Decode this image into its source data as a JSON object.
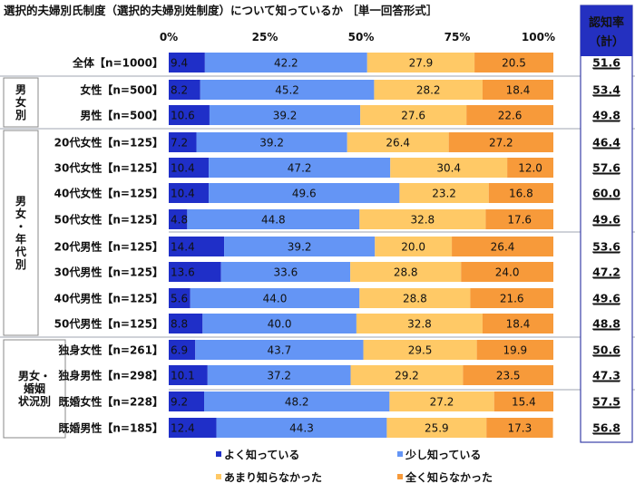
{
  "chart_data": {
    "type": "bar",
    "orientation": "horizontal",
    "stacked": true,
    "title": "選択的夫婦別氏制度（選択的夫婦別姓制度）について知っているか ［単一回答形式］",
    "xlim": [
      0,
      100
    ],
    "x_ticks": [
      "0%",
      "25%",
      "50%",
      "75%",
      "100%"
    ],
    "legend_position": "bottom",
    "series": [
      {
        "name": "よく知っている",
        "color": "#1f2fc8"
      },
      {
        "name": "少し知っている",
        "color": "#6495f5"
      },
      {
        "name": "あまり知らなかった",
        "color": "#ffc966"
      },
      {
        "name": "全く知らなかった",
        "color": "#f79a3a"
      }
    ],
    "side_column_header": "認知率（計）",
    "side_column_header_line1": "認知率",
    "side_column_header_line2": "（計）",
    "groups": [
      {
        "label": "",
        "rows": [
          0
        ]
      },
      {
        "label": "男女別",
        "rows": [
          1,
          2
        ]
      },
      {
        "label": "男女・年代別",
        "rows": [
          3,
          4,
          5,
          6,
          7,
          8,
          9,
          10
        ]
      },
      {
        "label": "男女・婚姻状況別",
        "rows": [
          11,
          12,
          13,
          14
        ]
      }
    ],
    "group_labels_display": [
      "",
      "男\n女\n別",
      "男\n女\n・\n年\n代\n別",
      "男女・\n婚姻\n状況別"
    ],
    "categories": [
      "全体【n=1000】",
      "女性【n=500】",
      "男性【n=500】",
      "20代女性【n=125】",
      "30代女性【n=125】",
      "40代女性【n=125】",
      "50代女性【n=125】",
      "20代男性【n=125】",
      "30代男性【n=125】",
      "40代男性【n=125】",
      "50代男性【n=125】",
      "独身女性【n=261】",
      "独身男性【n=298】",
      "既婚女性【n=228】",
      "既婚男性【n=185】"
    ],
    "values": [
      [
        9.4,
        42.2,
        27.9,
        20.5
      ],
      [
        8.2,
        45.2,
        28.2,
        18.4
      ],
      [
        10.6,
        39.2,
        27.6,
        22.6
      ],
      [
        7.2,
        39.2,
        26.4,
        27.2
      ],
      [
        10.4,
        47.2,
        30.4,
        12.0
      ],
      [
        10.4,
        49.6,
        23.2,
        16.8
      ],
      [
        4.8,
        44.8,
        32.8,
        17.6
      ],
      [
        14.4,
        39.2,
        20.0,
        26.4
      ],
      [
        13.6,
        33.6,
        28.8,
        24.0
      ],
      [
        5.6,
        44.0,
        28.8,
        21.6
      ],
      [
        8.8,
        40.0,
        32.8,
        18.4
      ],
      [
        6.9,
        43.7,
        29.5,
        19.9
      ],
      [
        10.1,
        37.2,
        29.2,
        23.5
      ],
      [
        9.2,
        48.2,
        27.2,
        15.4
      ],
      [
        12.4,
        44.3,
        25.9,
        17.3
      ]
    ],
    "awareness_total": [
      "51.6",
      "53.4",
      "49.8",
      "46.4",
      "57.6",
      "60.0",
      "49.6",
      "53.6",
      "47.2",
      "49.6",
      "48.8",
      "50.6",
      "47.3",
      "57.5",
      "56.8"
    ]
  }
}
